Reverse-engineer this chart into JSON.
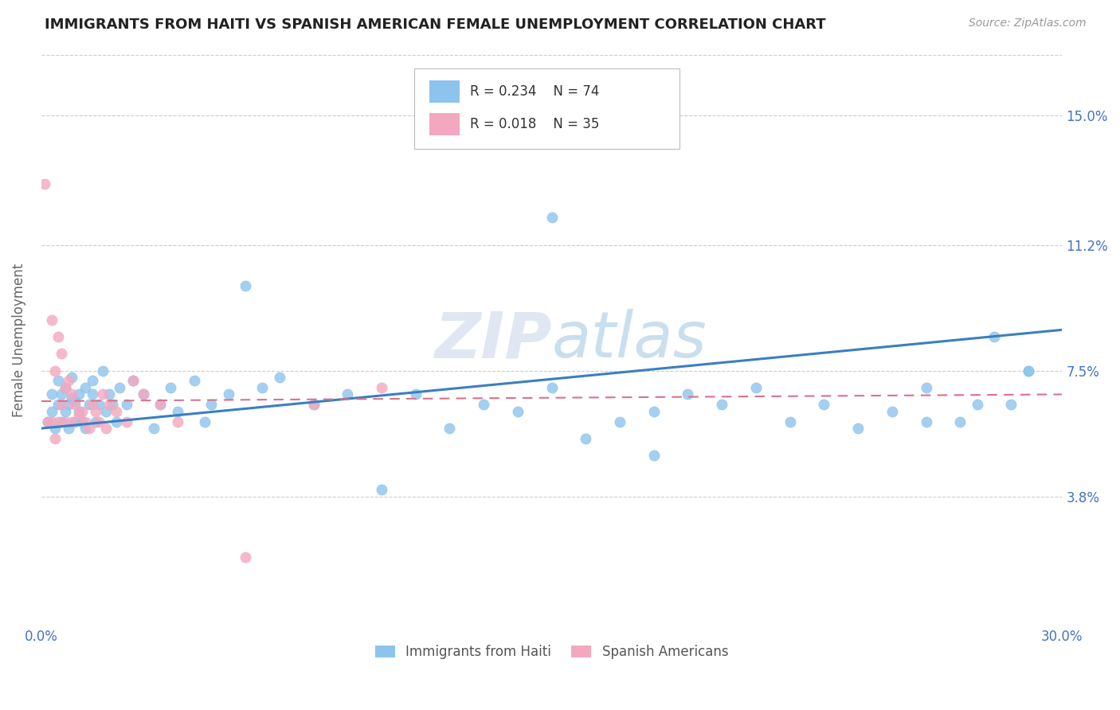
{
  "title": "IMMIGRANTS FROM HAITI VS SPANISH AMERICAN FEMALE UNEMPLOYMENT CORRELATION CHART",
  "source": "Source: ZipAtlas.com",
  "ylabel_label": "Female Unemployment",
  "x_min": 0.0,
  "x_max": 0.3,
  "y_min": 0.0,
  "y_max": 0.168,
  "y_ticks": [
    0.038,
    0.075,
    0.112,
    0.15
  ],
  "y_tick_labels": [
    "3.8%",
    "7.5%",
    "11.2%",
    "15.0%"
  ],
  "x_ticks": [
    0.0,
    0.05,
    0.1,
    0.15,
    0.2,
    0.25,
    0.3
  ],
  "x_tick_labels": [
    "0.0%",
    "",
    "",
    "",
    "",
    "",
    "30.0%"
  ],
  "color_haiti": "#8DC4ED",
  "color_spanish": "#F4A8C0",
  "color_trend_haiti": "#3A7FC1",
  "color_trend_spanish": "#D9728A",
  "color_grid": "#CCCCCC",
  "color_title": "#222222",
  "color_axis_label": "#666666",
  "color_tick_blue": "#4472C4",
  "color_watermark": "#D0D8E8",
  "watermark_text": "ZIPAtlas",
  "haiti_x": [
    0.002,
    0.003,
    0.003,
    0.004,
    0.005,
    0.005,
    0.006,
    0.006,
    0.007,
    0.007,
    0.008,
    0.008,
    0.009,
    0.009,
    0.01,
    0.01,
    0.011,
    0.011,
    0.012,
    0.013,
    0.013,
    0.014,
    0.015,
    0.015,
    0.016,
    0.017,
    0.018,
    0.019,
    0.02,
    0.021,
    0.022,
    0.023,
    0.025,
    0.027,
    0.03,
    0.033,
    0.035,
    0.038,
    0.04,
    0.045,
    0.048,
    0.05,
    0.055,
    0.06,
    0.065,
    0.07,
    0.08,
    0.09,
    0.1,
    0.11,
    0.12,
    0.13,
    0.14,
    0.15,
    0.16,
    0.17,
    0.18,
    0.19,
    0.2,
    0.21,
    0.22,
    0.23,
    0.24,
    0.25,
    0.26,
    0.27,
    0.275,
    0.28,
    0.285,
    0.29,
    0.15,
    0.18,
    0.26,
    0.29
  ],
  "haiti_y": [
    0.06,
    0.063,
    0.068,
    0.058,
    0.065,
    0.072,
    0.06,
    0.068,
    0.063,
    0.07,
    0.058,
    0.065,
    0.067,
    0.073,
    0.06,
    0.066,
    0.068,
    0.063,
    0.06,
    0.058,
    0.07,
    0.065,
    0.068,
    0.072,
    0.06,
    0.065,
    0.075,
    0.063,
    0.068,
    0.065,
    0.06,
    0.07,
    0.065,
    0.072,
    0.068,
    0.058,
    0.065,
    0.07,
    0.063,
    0.072,
    0.06,
    0.065,
    0.068,
    0.1,
    0.07,
    0.073,
    0.065,
    0.068,
    0.04,
    0.068,
    0.058,
    0.065,
    0.063,
    0.07,
    0.055,
    0.06,
    0.063,
    0.068,
    0.065,
    0.07,
    0.06,
    0.065,
    0.058,
    0.063,
    0.07,
    0.06,
    0.065,
    0.085,
    0.065,
    0.075,
    0.12,
    0.05,
    0.06,
    0.075
  ],
  "spanish_x": [
    0.001,
    0.002,
    0.003,
    0.003,
    0.004,
    0.004,
    0.005,
    0.005,
    0.006,
    0.006,
    0.007,
    0.007,
    0.008,
    0.009,
    0.009,
    0.01,
    0.011,
    0.012,
    0.013,
    0.014,
    0.015,
    0.016,
    0.017,
    0.018,
    0.019,
    0.02,
    0.022,
    0.025,
    0.027,
    0.03,
    0.035,
    0.04,
    0.06,
    0.08,
    0.1
  ],
  "spanish_y": [
    0.13,
    0.06,
    0.09,
    0.06,
    0.075,
    0.055,
    0.085,
    0.06,
    0.08,
    0.065,
    0.07,
    0.06,
    0.072,
    0.068,
    0.06,
    0.065,
    0.062,
    0.063,
    0.06,
    0.058,
    0.065,
    0.063,
    0.06,
    0.068,
    0.058,
    0.065,
    0.063,
    0.06,
    0.072,
    0.068,
    0.065,
    0.06,
    0.02,
    0.065,
    0.07
  ],
  "haiti_trend_x0": 0.0,
  "haiti_trend_y0": 0.058,
  "haiti_trend_x1": 0.3,
  "haiti_trend_y1": 0.087,
  "spanish_trend_x0": 0.0,
  "spanish_trend_y0": 0.066,
  "spanish_trend_x1": 0.3,
  "spanish_trend_y1": 0.068
}
